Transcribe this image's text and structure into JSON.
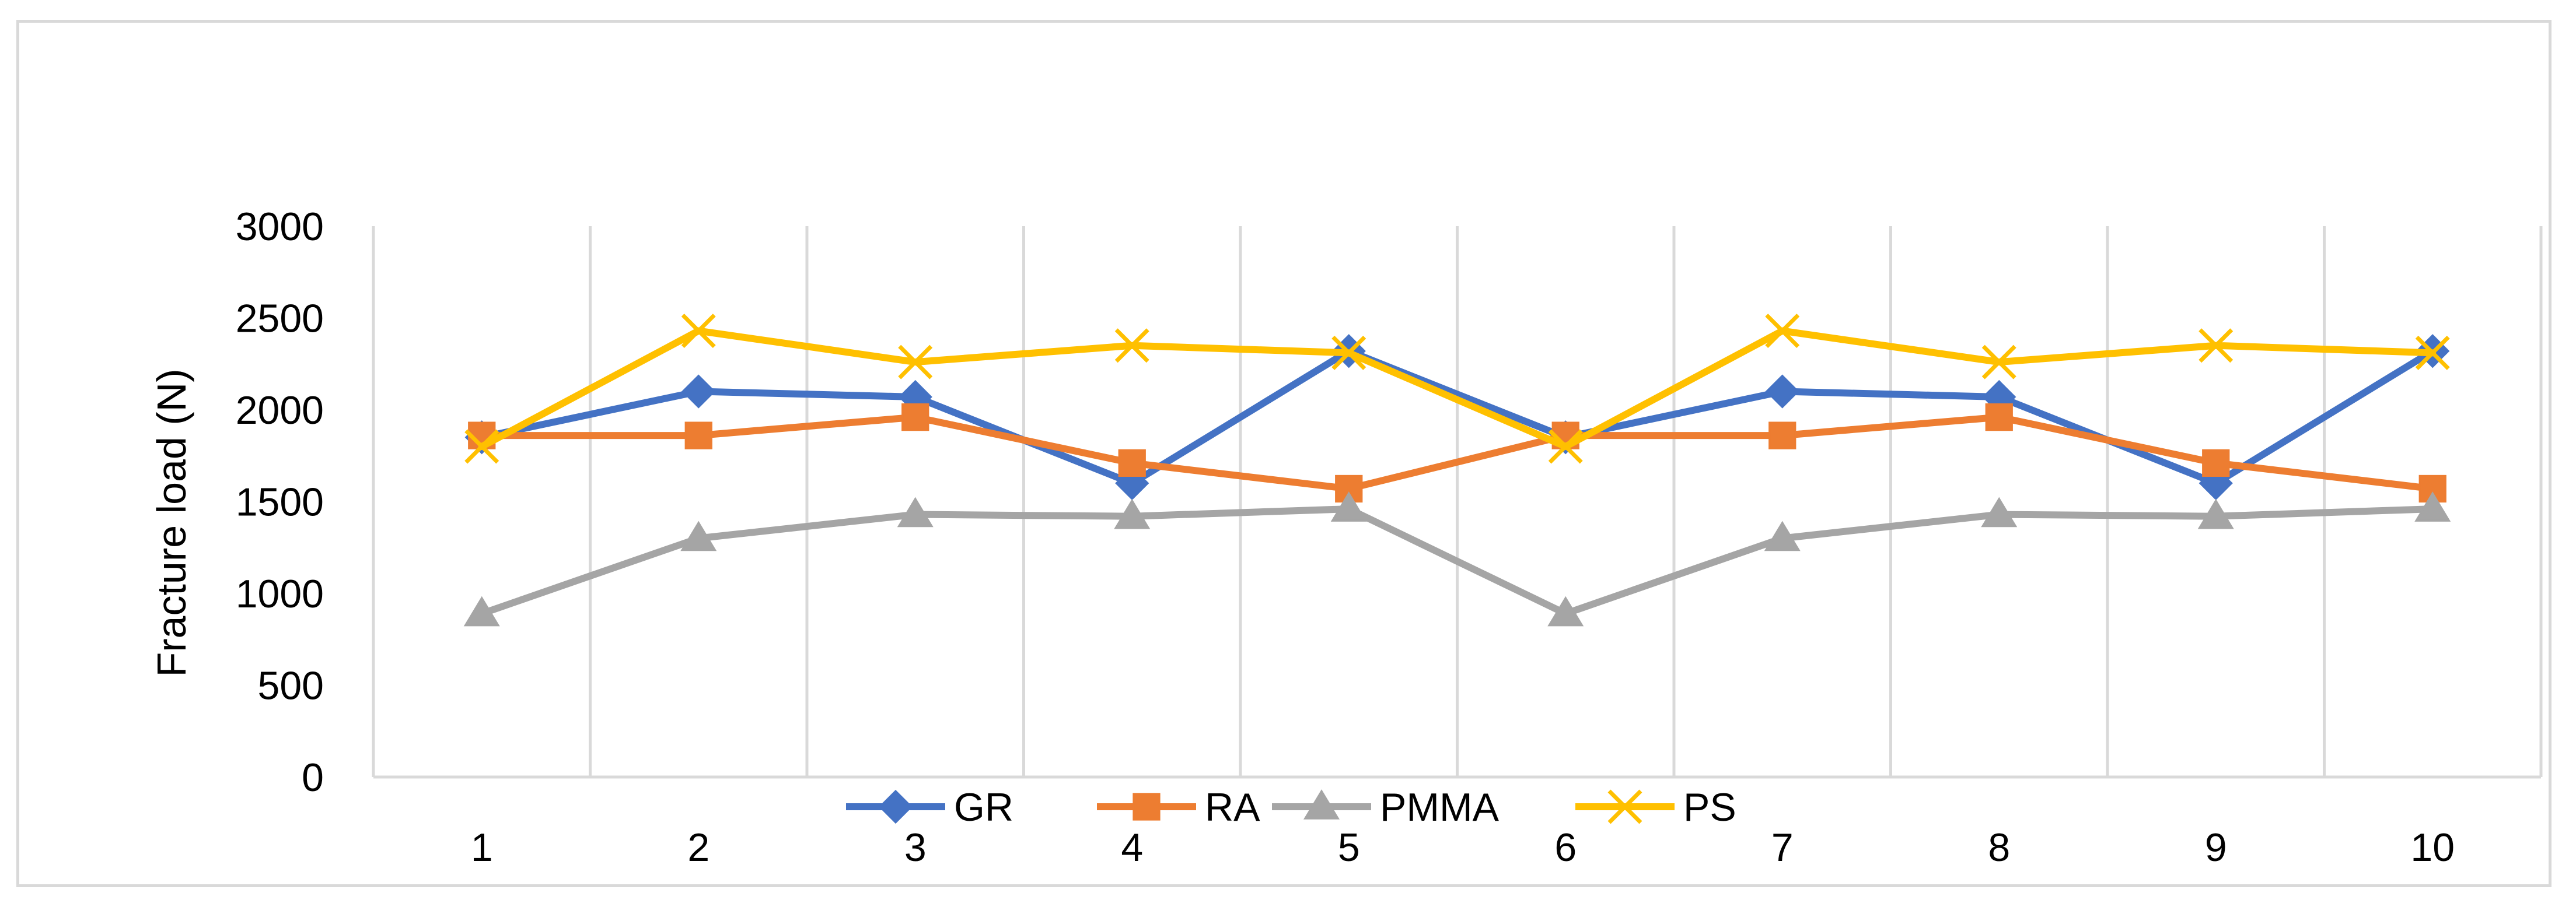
{
  "chart_data": {
    "type": "line",
    "title": "",
    "xlabel": "",
    "ylabel": "Fracture load (N)",
    "categories": [
      "1",
      "2",
      "3",
      "4",
      "5",
      "6",
      "7",
      "8",
      "9",
      "10"
    ],
    "ylim": [
      0,
      3000
    ],
    "yticks": [
      0,
      500,
      1000,
      1500,
      2000,
      2500,
      3000
    ],
    "grid": "vertical",
    "legend": "bottom",
    "series": [
      {
        "name": "GR",
        "color": "#4472c4",
        "marker": "diamond",
        "values": [
          1850,
          2100,
          2070,
          1600,
          2320,
          1850,
          2100,
          2070,
          1600,
          2320
        ]
      },
      {
        "name": "RA",
        "color": "#ed7d31",
        "marker": "square",
        "values": [
          1860,
          1860,
          1960,
          1710,
          1570,
          1860,
          1860,
          1960,
          1710,
          1570
        ]
      },
      {
        "name": "PMMA",
        "color": "#a5a5a5",
        "marker": "triangle",
        "values": [
          890,
          1300,
          1430,
          1420,
          1460,
          890,
          1300,
          1430,
          1420,
          1460
        ]
      },
      {
        "name": "PS",
        "color": "#ffc000",
        "marker": "x",
        "values": [
          1800,
          2430,
          2260,
          2350,
          2310,
          1800,
          2430,
          2260,
          2350,
          2310
        ]
      }
    ]
  }
}
